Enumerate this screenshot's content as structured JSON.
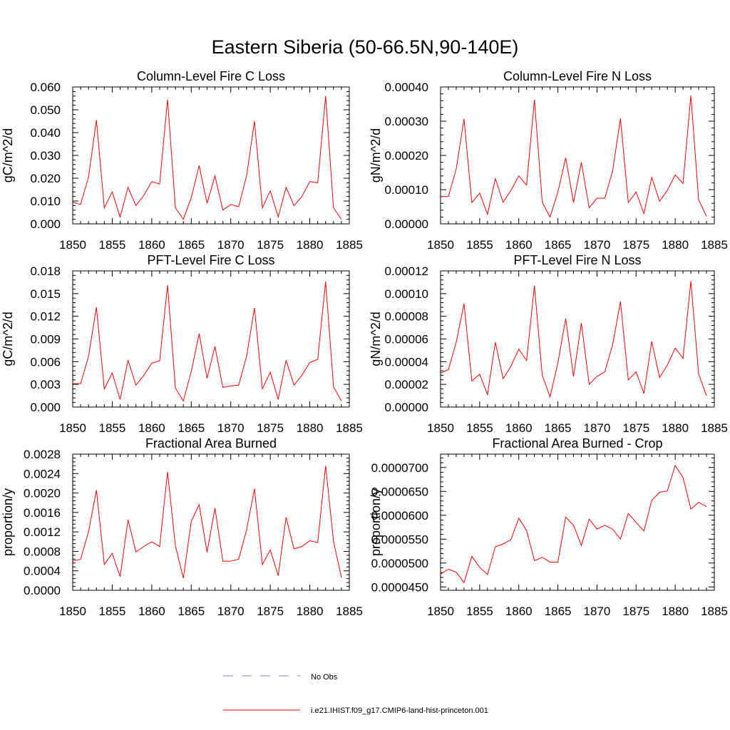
{
  "figure": {
    "title": "Eastern Siberia (50-66.5N,90-140E)",
    "legend": [
      {
        "label": "No Obs",
        "color": "#7b86c9",
        "style": "dashed"
      },
      {
        "label": "i.e21.IHIST.f09_g17.CMIP6-land-hist-princeton.001",
        "color": "#ff0000",
        "style": "solid"
      }
    ]
  },
  "chart_data": [
    {
      "type": "line",
      "title": "Column-Level Fire C Loss",
      "xlabel": "",
      "ylabel": "gC/m^2/d",
      "xlim": [
        1850,
        1885
      ],
      "ylim": [
        0,
        0.06
      ],
      "xticks": [
        "1850",
        "1855",
        "1860",
        "1865",
        "1870",
        "1875",
        "1880",
        "1885"
      ],
      "yticks": [
        "0.000",
        "0.010",
        "0.020",
        "0.030",
        "0.040",
        "0.050",
        "0.060"
      ],
      "x": [
        1850,
        1851,
        1852,
        1853,
        1854,
        1855,
        1856,
        1857,
        1858,
        1859,
        1860,
        1861,
        1862,
        1863,
        1864,
        1865,
        1866,
        1867,
        1868,
        1869,
        1870,
        1871,
        1872,
        1873,
        1874,
        1875,
        1876,
        1877,
        1878,
        1879,
        1880,
        1881,
        1882,
        1883,
        1884
      ],
      "series": [
        {
          "color": "#ff0000",
          "values": [
            0.0095,
            0.0085,
            0.0205,
            0.0455,
            0.007,
            0.014,
            0.003,
            0.016,
            0.008,
            0.0125,
            0.0185,
            0.0175,
            0.0545,
            0.007,
            0.002,
            0.0115,
            0.0255,
            0.009,
            0.021,
            0.006,
            0.0085,
            0.0075,
            0.021,
            0.045,
            0.007,
            0.0145,
            0.003,
            0.016,
            0.008,
            0.012,
            0.0185,
            0.018,
            0.056,
            0.007,
            0.002
          ]
        }
      ]
    },
    {
      "type": "line",
      "title": "Column-Level Fire N Loss",
      "xlabel": "",
      "ylabel": "gN/m^2/d",
      "xlim": [
        1850,
        1885
      ],
      "ylim": [
        0,
        0.0004
      ],
      "xticks": [
        "1850",
        "1855",
        "1860",
        "1865",
        "1870",
        "1875",
        "1880",
        "1885"
      ],
      "yticks": [
        "0.00000",
        "0.00010",
        "0.00020",
        "0.00030",
        "0.00040"
      ],
      "x": [
        1850,
        1851,
        1852,
        1853,
        1854,
        1855,
        1856,
        1857,
        1858,
        1859,
        1860,
        1861,
        1862,
        1863,
        1864,
        1865,
        1866,
        1867,
        1868,
        1869,
        1870,
        1871,
        1872,
        1873,
        1874,
        1875,
        1876,
        1877,
        1878,
        1879,
        1880,
        1881,
        1882,
        1883,
        1884
      ],
      "series": [
        {
          "color": "#ff0000",
          "values": [
            8e-05,
            8e-05,
            0.00016,
            0.000307,
            6.2e-05,
            9e-05,
            2.8e-05,
            0.000132,
            6.3e-05,
            9.8e-05,
            0.00014,
            0.000113,
            0.000363,
            6.3e-05,
            2e-05,
            9.3e-05,
            0.000193,
            6.2e-05,
            0.00018,
            4.7e-05,
            7.5e-05,
            7.5e-05,
            0.000155,
            0.000308,
            6.2e-05,
            9.3e-05,
            3e-05,
            0.000136,
            6.6e-05,
            9.8e-05,
            0.000143,
            0.000118,
            0.000375,
            7e-05,
            2.2e-05
          ]
        }
      ]
    },
    {
      "type": "line",
      "title": "PFT-Level Fire C Loss",
      "xlabel": "",
      "ylabel": "gC/m^2/d",
      "xlim": [
        1850,
        1885
      ],
      "ylim": [
        0,
        0.018
      ],
      "xticks": [
        "1850",
        "1855",
        "1860",
        "1865",
        "1870",
        "1875",
        "1880",
        "1885"
      ],
      "yticks": [
        "0.000",
        "0.003",
        "0.006",
        "0.009",
        "0.012",
        "0.015",
        "0.018"
      ],
      "x": [
        1850,
        1851,
        1852,
        1853,
        1854,
        1855,
        1856,
        1857,
        1858,
        1859,
        1860,
        1861,
        1862,
        1863,
        1864,
        1865,
        1866,
        1867,
        1868,
        1869,
        1870,
        1871,
        1872,
        1873,
        1874,
        1875,
        1876,
        1877,
        1878,
        1879,
        1880,
        1881,
        1882,
        1883,
        1884
      ],
      "series": [
        {
          "color": "#ff0000",
          "values": [
            0.0031,
            0.0031,
            0.0067,
            0.0132,
            0.0024,
            0.0045,
            0.001,
            0.0062,
            0.0029,
            0.0042,
            0.0058,
            0.0061,
            0.0161,
            0.0025,
            0.0008,
            0.0047,
            0.0097,
            0.0038,
            0.008,
            0.0026,
            0.0028,
            0.0029,
            0.0067,
            0.0131,
            0.0024,
            0.0046,
            0.001,
            0.0062,
            0.0029,
            0.0042,
            0.0059,
            0.0063,
            0.0166,
            0.0027,
            0.0008
          ]
        }
      ]
    },
    {
      "type": "line",
      "title": "PFT-Level Fire N Loss",
      "xlabel": "",
      "ylabel": "gN/m^2/d",
      "xlim": [
        1850,
        1885
      ],
      "ylim": [
        0,
        0.00012
      ],
      "xticks": [
        "1850",
        "1855",
        "1860",
        "1865",
        "1870",
        "1875",
        "1880",
        "1885"
      ],
      "yticks": [
        "0.00000",
        "0.00002",
        "0.00004",
        "0.00006",
        "0.00008",
        "0.00010",
        "0.00012"
      ],
      "x": [
        1850,
        1851,
        1852,
        1853,
        1854,
        1855,
        1856,
        1857,
        1858,
        1859,
        1860,
        1861,
        1862,
        1863,
        1864,
        1865,
        1866,
        1867,
        1868,
        1869,
        1870,
        1871,
        1872,
        1873,
        1874,
        1875,
        1876,
        1877,
        1878,
        1879,
        1880,
        1881,
        1882,
        1883,
        1884
      ],
      "series": [
        {
          "color": "#ff0000",
          "values": [
            3e-05,
            3.3e-05,
            5.7e-05,
            9.1e-05,
            2.3e-05,
            2.9e-05,
            1.1e-05,
            5.7e-05,
            2.5e-05,
            3.6e-05,
            5.1e-05,
            4.1e-05,
            0.000107,
            2.8e-05,
            9e-06,
            3.9e-05,
            7.8e-05,
            2.7e-05,
            7.4e-05,
            2e-05,
            2.7e-05,
            3.1e-05,
            5.5e-05,
            9.3e-05,
            2.4e-05,
            3.1e-05,
            1.2e-05,
            5.8e-05,
            2.6e-05,
            3.7e-05,
            5.2e-05,
            4.3e-05,
            0.000111,
            2.9e-05,
            1e-05
          ]
        }
      ]
    },
    {
      "type": "line",
      "title": "Fractional Area Burned",
      "xlabel": "",
      "ylabel": "proportion/y",
      "xlim": [
        1850,
        1885
      ],
      "ylim": [
        0,
        0.0028
      ],
      "xticks": [
        "1850",
        "1855",
        "1860",
        "1865",
        "1870",
        "1875",
        "1880",
        "1885"
      ],
      "yticks": [
        "0.0000",
        "0.0004",
        "0.0008",
        "0.0012",
        "0.0016",
        "0.0020",
        "0.0024",
        "0.0028"
      ],
      "x": [
        1850,
        1851,
        1852,
        1853,
        1854,
        1855,
        1856,
        1857,
        1858,
        1859,
        1860,
        1861,
        1862,
        1863,
        1864,
        1865,
        1866,
        1867,
        1868,
        1869,
        1870,
        1871,
        1872,
        1873,
        1874,
        1875,
        1876,
        1877,
        1878,
        1879,
        1880,
        1881,
        1882,
        1883,
        1884
      ],
      "series": [
        {
          "color": "#ff0000",
          "values": [
            0.0006,
            0.00064,
            0.0012,
            0.00206,
            0.00053,
            0.00076,
            0.00028,
            0.00145,
            0.00079,
            0.0009,
            0.001,
            0.0009,
            0.00243,
            0.00091,
            0.00025,
            0.00142,
            0.00176,
            0.00078,
            0.00169,
            0.0006,
            0.0006,
            0.00064,
            0.00124,
            0.00209,
            0.00053,
            0.00083,
            0.0003,
            0.0015,
            0.00085,
            0.0009,
            0.00102,
            0.00098,
            0.00256,
            0.00101,
            0.00026
          ]
        }
      ]
    },
    {
      "type": "line",
      "title": "Fractional Area Burned - Crop",
      "xlabel": "",
      "ylabel": "proportion/y",
      "xlim": [
        1850,
        1885
      ],
      "ylim": [
        4.43e-05,
        7.28e-05
      ],
      "xticks": [
        "1850",
        "1855",
        "1860",
        "1865",
        "1870",
        "1875",
        "1880",
        "1885"
      ],
      "yticks": [
        "0.0000450",
        "0.0000500",
        "0.0000550",
        "0.0000600",
        "0.0000650",
        "0.0000700"
      ],
      "ytick_values": [
        4.5e-05,
        5e-05,
        5.5e-05,
        6e-05,
        6.5e-05,
        7e-05
      ],
      "x": [
        1850,
        1851,
        1852,
        1853,
        1854,
        1855,
        1856,
        1857,
        1858,
        1859,
        1860,
        1861,
        1862,
        1863,
        1864,
        1865,
        1866,
        1867,
        1868,
        1869,
        1870,
        1871,
        1872,
        1873,
        1874,
        1875,
        1876,
        1877,
        1878,
        1879,
        1880,
        1881,
        1882,
        1883,
        1884
      ],
      "series": [
        {
          "color": "#ff0000",
          "values": [
            4.77e-05,
            4.87e-05,
            4.81e-05,
            4.59e-05,
            5.14e-05,
            4.91e-05,
            4.76e-05,
            5.34e-05,
            5.4e-05,
            5.49e-05,
            5.94e-05,
            5.68e-05,
            5.05e-05,
            5.12e-05,
            5.02e-05,
            5.02e-05,
            5.96e-05,
            5.79e-05,
            5.37e-05,
            5.92e-05,
            5.71e-05,
            5.79e-05,
            5.71e-05,
            5.5e-05,
            6.04e-05,
            5.85e-05,
            5.67e-05,
            6.31e-05,
            6.48e-05,
            6.51e-05,
            7.04e-05,
            6.79e-05,
            6.13e-05,
            6.27e-05,
            6.18e-05
          ]
        }
      ]
    }
  ]
}
